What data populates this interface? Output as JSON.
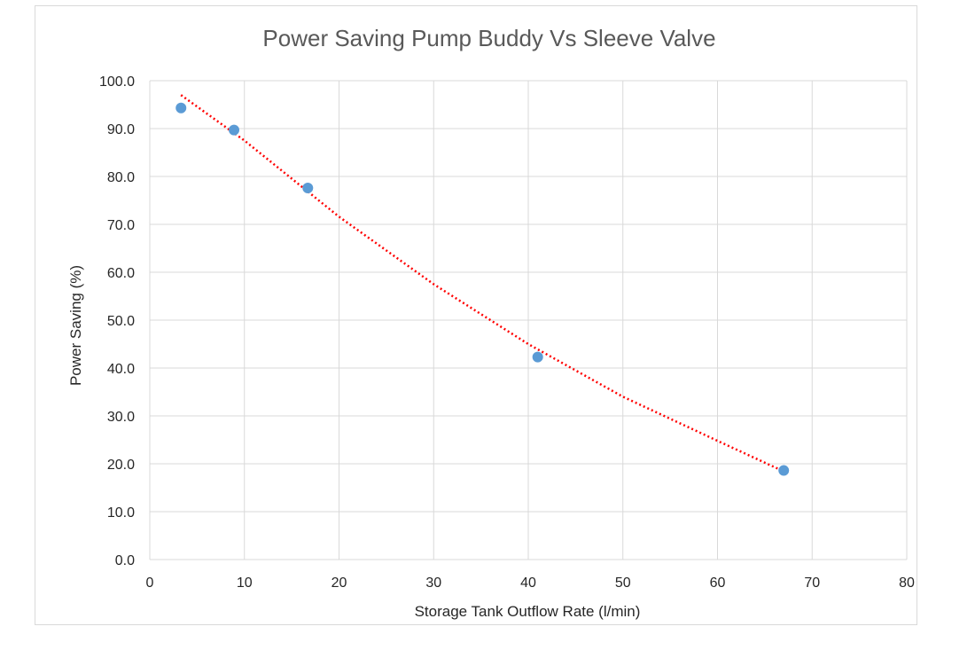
{
  "chart_data": {
    "type": "scatter",
    "title": "Power Saving Pump Buddy Vs Sleeve Valve",
    "xlabel": "Storage Tank Outflow Rate (l/min)",
    "ylabel": "Power Saving (%)",
    "xlim": [
      0,
      80
    ],
    "ylim": [
      0,
      100
    ],
    "x_ticks": [
      "0",
      "10",
      "20",
      "30",
      "40",
      "50",
      "60",
      "70",
      "80"
    ],
    "y_ticks": [
      "0.0",
      "10.0",
      "20.0",
      "30.0",
      "40.0",
      "50.0",
      "60.0",
      "70.0",
      "80.0",
      "90.0",
      "100.0"
    ],
    "grid": true,
    "series": [
      {
        "x": [
          3.3,
          8.9,
          16.7,
          41.0,
          67.0
        ],
        "y": [
          94.3,
          89.7,
          77.6,
          42.3,
          18.6
        ],
        "color": "#5b9bd5",
        "marker": "circle"
      }
    ],
    "trendline": {
      "type": "power",
      "style": "dotted",
      "color": "#ff0000",
      "x": [
        3.3,
        10,
        20,
        30,
        40,
        50,
        60,
        67
      ],
      "y": [
        97,
        87.5,
        71.6,
        57.5,
        45,
        34,
        24.8,
        18.4
      ]
    }
  }
}
